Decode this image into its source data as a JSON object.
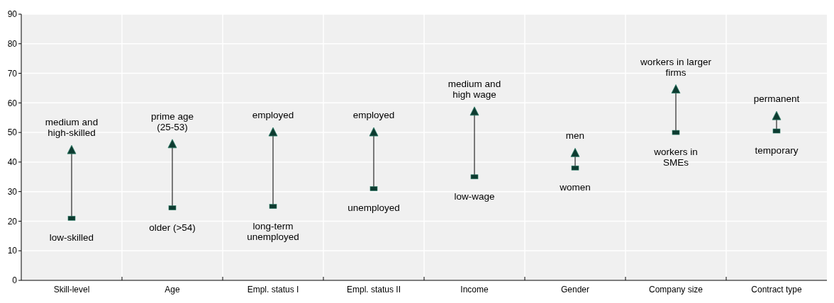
{
  "chart_data": {
    "type": "scatter",
    "categories": [
      "Skill-level",
      "Age",
      "Empl. status I",
      "Empl. status II",
      "Income",
      "Gender",
      "Company size",
      "Contract type"
    ],
    "series": [
      {
        "color": "#0d3b30",
        "marker": "square",
        "values": [
          21,
          24.5,
          25,
          31,
          35,
          38,
          50,
          50.5
        ]
      },
      {
        "color": "#0d3b30",
        "marker": "triangle",
        "values": [
          44,
          46,
          50,
          50,
          57,
          43,
          64.5,
          55.5
        ]
      }
    ],
    "ylim": [
      0,
      90
    ],
    "yticks": [
      0,
      10,
      20,
      30,
      40,
      50,
      60,
      70,
      80,
      90
    ],
    "grid": true,
    "annotations": [
      "medium and\nhigh-skilled",
      "low-skilled",
      "prime age\n(25-53)",
      "older (>54)",
      "employed",
      "long-term\nunemployed",
      "employed",
      "unemployed",
      "medium and\nhigh wage",
      "low-wage",
      "men",
      "women",
      "workers in larger\nfirms",
      "workers in\nSMEs",
      "permanent",
      "temporary"
    ]
  }
}
